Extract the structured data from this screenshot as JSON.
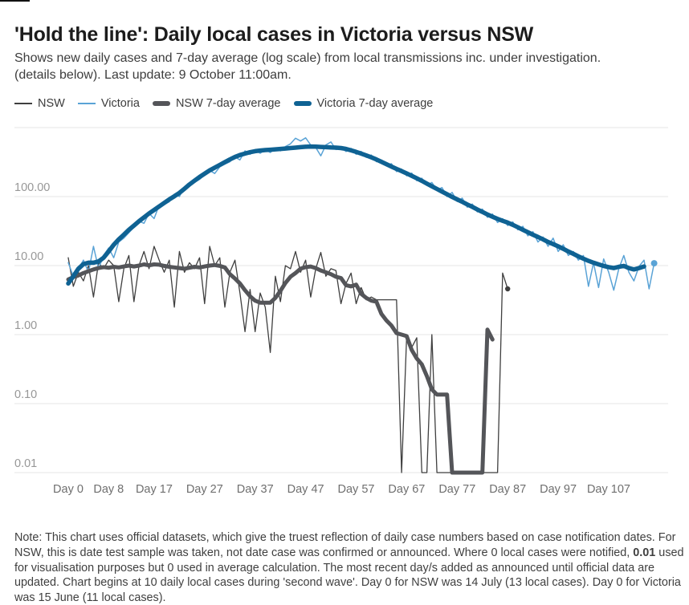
{
  "header": {
    "title": "'Hold the line': Daily local cases in Victoria versus NSW",
    "subtitle_line1": "Shows new daily cases and 7-day average (log scale) from local transmissions inc. under investigation.",
    "subtitle_line2": "(details below). Last update: 9 October 11:00am."
  },
  "legend": {
    "items": [
      {
        "id": "nsw",
        "label": "NSW",
        "color": "#3f3f3f",
        "style": "thin"
      },
      {
        "id": "victoria",
        "label": "Victoria",
        "color": "#5aa3d6",
        "style": "thin"
      },
      {
        "id": "nsw-avg",
        "label": "NSW 7-day average",
        "color": "#545559",
        "style": "thick"
      },
      {
        "id": "vic-avg",
        "label": "Victoria 7-day average",
        "color": "#0f6293",
        "style": "thick"
      }
    ]
  },
  "note": {
    "part1": "Note: This chart uses official datasets, which give the truest reflection of daily case numbers based on case notification dates. For NSW, this is date test sample was taken, not date case was confirmed or announced. Where 0 local cases were notified, ",
    "bold": "0.01",
    "part2": " used for visualisation purposes but 0 used in average calculation. The most recent day/s added as announced until official data are updated. Chart begins at 10 daily local cases during 'second wave'. Day 0 for NSW was 14 July (13 local cases). Day 0 for Victoria was 15 June (11 local cases)."
  },
  "chart_data": {
    "type": "line",
    "y_scale": "log",
    "y_range": [
      0.01,
      1000
    ],
    "x_unit": "days since outbreak began (10 daily local cases)",
    "grid": {
      "color": "#e4e4e4",
      "x_from": 18,
      "x_to": 832
    },
    "tick_colors": {
      "y": "#979797",
      "x": "#6f6f6f"
    },
    "y_ticks": [
      {
        "label": "",
        "value": 1000
      },
      {
        "label": "100.00",
        "value": 100
      },
      {
        "label": "10.00",
        "value": 10
      },
      {
        "label": "1.00",
        "value": 1
      },
      {
        "label": "0.10",
        "value": 0.1
      },
      {
        "label": "0.01",
        "value": 0.01
      }
    ],
    "x_ticks": [
      {
        "label": "Day 0",
        "day": 0
      },
      {
        "label": "Day 8",
        "day": 8
      },
      {
        "label": "Day 17",
        "day": 17
      },
      {
        "label": "Day 27",
        "day": 27
      },
      {
        "label": "Day 37",
        "day": 37
      },
      {
        "label": "Day 47",
        "day": 47
      },
      {
        "label": "Day 57",
        "day": 57
      },
      {
        "label": "Day 67",
        "day": 67
      },
      {
        "label": "Day 77",
        "day": 77
      },
      {
        "label": "Day 87",
        "day": 87
      },
      {
        "label": "Day 97",
        "day": 97
      },
      {
        "label": "Day 107",
        "day": 107
      }
    ],
    "series": [
      {
        "id": "nsw-daily",
        "name": "NSW",
        "color": "#3f3f3f",
        "width": 1.3,
        "start_day": 0,
        "end_dot": true,
        "dot_r": 3.2,
        "values": [
          13,
          5,
          8,
          6,
          10,
          3.5,
          11,
          9,
          12,
          10,
          3,
          9,
          14,
          3,
          10,
          16,
          9,
          19,
          12,
          8,
          12,
          2.5,
          16,
          8,
          11,
          9,
          13,
          2.8,
          19,
          10,
          13,
          2.5,
          8,
          12,
          4,
          1.1,
          4.5,
          1.1,
          4,
          2.5,
          0.55,
          7,
          3,
          10,
          9,
          16,
          8,
          12,
          3.5,
          9,
          15.5,
          7,
          9,
          8.5,
          2.8,
          5.5,
          7.8,
          2.8,
          4.8,
          3.2,
          3.5,
          3.2,
          3.2,
          3.2,
          3.2,
          3.2,
          0.01,
          0.95,
          0.65,
          0.9,
          0.01,
          0.01,
          1.0,
          0.01,
          0.01,
          0.01,
          0.01,
          0.01,
          0.01,
          0.01,
          0.01,
          0.01,
          0.01,
          0.01,
          0.01,
          0.01,
          7.8,
          4.6
        ]
      },
      {
        "id": "vic-daily",
        "name": "Victoria",
        "color": "#5aa3d6",
        "width": 1.5,
        "start_day": 0,
        "end_dot": true,
        "dot_r": 4,
        "values": [
          11,
          7,
          9,
          12,
          8,
          19,
          9,
          14,
          18,
          13,
          22,
          25,
          30,
          36,
          44,
          41,
          57,
          48,
          75,
          77,
          84,
          108,
          100,
          139,
          142,
          160,
          178,
          205,
          240,
          216,
          270,
          295,
          320,
          375,
          340,
          460,
          410,
          470,
          425,
          480,
          435,
          500,
          460,
          530,
          580,
          700,
          640,
          710,
          560,
          515,
          390,
          560,
          620,
          480,
          515,
          450,
          500,
          410,
          450,
          370,
          400,
          320,
          340,
          280,
          300,
          230,
          250,
          200,
          220,
          170,
          185,
          145,
          160,
          125,
          135,
          100,
          115,
          85,
          95,
          70,
          78,
          60,
          66,
          50,
          56,
          42,
          48,
          38,
          43,
          33,
          37,
          27,
          31,
          22,
          26,
          19,
          25,
          16,
          20,
          14,
          16,
          12,
          14,
          5,
          11,
          4.8,
          12.5,
          8,
          4.4,
          9,
          14,
          8,
          6,
          9.7,
          12,
          4.6,
          10.8
        ]
      },
      {
        "id": "nsw-avg",
        "name": "NSW 7-day average",
        "color": "#545559",
        "width": 5,
        "start_day": 0,
        "end_dot": false,
        "values": [
          6.3,
          6.8,
          7.2,
          7.8,
          8.3,
          8.8,
          9.2,
          9.5,
          9.3,
          9.6,
          9.4,
          9.7,
          10,
          9.7,
          10,
          10.4,
          10.1,
          10.4,
          10.3,
          9.9,
          9.6,
          9.4,
          9.2,
          9.0,
          9.3,
          9.6,
          9.4,
          9.7,
          10,
          10.2,
          9.9,
          9.4,
          7.5,
          6.5,
          5.5,
          4.4,
          3.6,
          3.1,
          2.9,
          2.9,
          2.9,
          3.4,
          4.3,
          5.6,
          6.9,
          7.8,
          9.0,
          9.5,
          9.7,
          9.2,
          8.5,
          8.0,
          7.5,
          6.9,
          6.6,
          5.2,
          5.0,
          5.3,
          3.9,
          3.4,
          3.1,
          3.0,
          2.0,
          1.6,
          1.35,
          1.05,
          1.0,
          0.95,
          0.6,
          0.45,
          0.37,
          0.25,
          0.16,
          0.135,
          0.135,
          0.135,
          0.01,
          0.01,
          0.01,
          0.01,
          0.01,
          0.01,
          0.01,
          1.18,
          0.85
        ]
      },
      {
        "id": "vic-avg",
        "name": "Victoria 7-day average",
        "color": "#0f6293",
        "width": 5.5,
        "start_day": 0,
        "end_dot": false,
        "values": [
          5.5,
          7,
          9,
          10.5,
          11,
          11,
          11.5,
          13,
          16,
          20,
          24,
          28,
          33,
          38,
          44,
          50,
          57,
          64,
          72,
          81,
          91,
          101,
          113,
          130,
          150,
          170,
          192,
          215,
          240,
          263,
          288,
          315,
          345,
          375,
          400,
          420,
          440,
          455,
          465,
          472,
          478,
          484,
          490,
          497,
          505,
          512,
          520,
          527,
          532,
          530,
          525,
          520,
          515,
          512,
          505,
          490,
          468,
          444,
          420,
          395,
          370,
          345,
          320,
          295,
          272,
          252,
          234,
          217,
          200,
          184,
          169,
          154,
          141,
          129,
          118,
          108,
          99,
          91,
          84,
          77,
          71,
          65,
          60,
          55,
          51,
          47.5,
          44.5,
          42,
          39,
          36,
          33,
          30.5,
          28,
          26,
          24,
          22,
          20.5,
          19,
          17.5,
          16,
          14.8,
          13.6,
          12.6,
          11.7,
          11,
          10.4,
          9.9,
          9.5,
          9.2,
          9.6,
          9.9,
          9.2,
          8.8,
          9.2,
          9.7
        ]
      }
    ]
  }
}
